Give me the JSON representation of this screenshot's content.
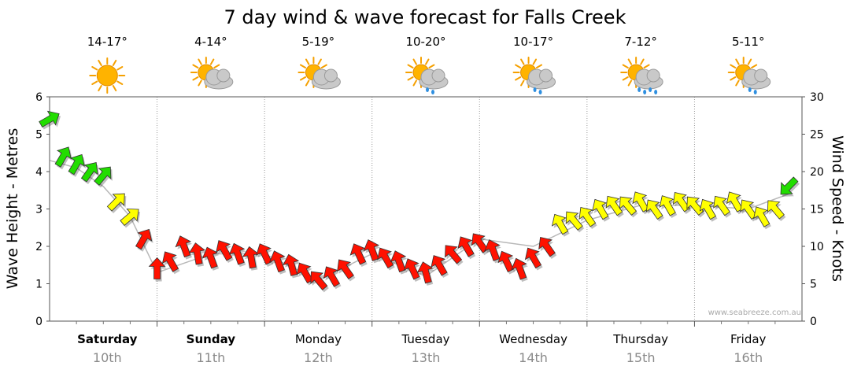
{
  "chart_data": {
    "type": "line",
    "title": "7 day wind & wave forecast for Falls Creek",
    "ylabel_left": "Wave Height - Metres",
    "ylabel_right": "Wind Speed - Knots",
    "ylim_left": [
      0,
      6
    ],
    "ylim_right": [
      0,
      30
    ],
    "left_ticks": [
      "0",
      "1",
      "2",
      "3",
      "4",
      "5",
      "6"
    ],
    "right_ticks": [
      "0",
      "5",
      "10",
      "15",
      "20",
      "25",
      "30"
    ],
    "grid": true,
    "watermark": "www.seabreeze.com.au",
    "days": [
      {
        "day": "Saturday",
        "date": "10th",
        "temp": "14-17°",
        "weather_icon": "sunny-icon",
        "bold": true
      },
      {
        "day": "Sunday",
        "date": "11th",
        "temp": "4-14°",
        "weather_icon": "partly-cloudy-icon",
        "bold": true
      },
      {
        "day": "Monday",
        "date": "12th",
        "temp": "5-19°",
        "weather_icon": "partly-cloudy-icon",
        "bold": false
      },
      {
        "day": "Tuesday",
        "date": "13th",
        "temp": "10-20°",
        "weather_icon": "showers-icon",
        "bold": false
      },
      {
        "day": "Wednesday",
        "date": "14th",
        "temp": "10-17°",
        "weather_icon": "showers-icon",
        "bold": false
      },
      {
        "day": "Thursday",
        "date": "15th",
        "temp": "7-12°",
        "weather_icon": "rain-icon",
        "bold": false
      },
      {
        "day": "Friday",
        "date": "16th",
        "temp": "5-11°",
        "weather_icon": "showers-icon",
        "bold": false
      }
    ],
    "colors": {
      "strong": "#22dd00",
      "moderate": "#ffff00",
      "light": "#ff1100",
      "wave_line": "#888888",
      "grid": "#999999"
    },
    "series": [
      {
        "name": "Wind Speed",
        "unit": "knots",
        "x_hours": [
          0,
          3,
          6,
          9,
          12,
          15,
          18,
          21,
          24,
          27,
          30,
          33,
          36,
          39,
          42,
          45,
          48,
          51,
          54,
          57,
          60,
          63,
          66,
          69,
          72,
          75,
          78,
          81,
          84,
          87,
          90,
          93,
          96,
          99,
          102,
          105,
          108,
          111,
          114,
          117,
          120,
          123,
          126,
          129,
          132,
          135,
          138,
          141,
          144,
          147,
          150,
          153,
          156,
          159,
          162,
          165
        ],
        "values": [
          27,
          22,
          21,
          20,
          19.5,
          16,
          14,
          11,
          7,
          8,
          10,
          9,
          8.5,
          9.5,
          9,
          8.5,
          9,
          8,
          7.5,
          6.5,
          5.5,
          6,
          7,
          9,
          9.5,
          8.5,
          8,
          7,
          6.5,
          7.5,
          9,
          10,
          10.5,
          9.5,
          8,
          7,
          8.5,
          10,
          13,
          13.5,
          14,
          15,
          15.5,
          15.5,
          16,
          15,
          15.5,
          16,
          15.5,
          15,
          15.5,
          16,
          15,
          14,
          15,
          18
        ],
        "directions_deg": [
          330,
          300,
          300,
          305,
          310,
          315,
          320,
          300,
          270,
          240,
          250,
          260,
          250,
          240,
          250,
          260,
          245,
          250,
          255,
          240,
          230,
          240,
          235,
          245,
          250,
          240,
          250,
          245,
          255,
          240,
          230,
          240,
          235,
          250,
          245,
          250,
          240,
          235,
          240,
          230,
          235,
          240,
          235,
          230,
          240,
          235,
          240,
          235,
          230,
          240,
          235,
          240,
          235,
          240,
          230,
          135
        ]
      },
      {
        "name": "Wave Height",
        "unit": "metres",
        "x_hours": [
          0,
          6,
          12,
          18,
          24,
          36,
          48,
          60,
          72,
          84,
          96,
          108,
          120,
          132,
          144,
          156,
          165
        ],
        "values": [
          4.3,
          4.1,
          3.6,
          2.8,
          1.3,
          1.8,
          1.8,
          1.1,
          1.8,
          1.2,
          2.2,
          2.0,
          2.7,
          3.1,
          3.1,
          3.0,
          3.4
        ]
      }
    ]
  }
}
